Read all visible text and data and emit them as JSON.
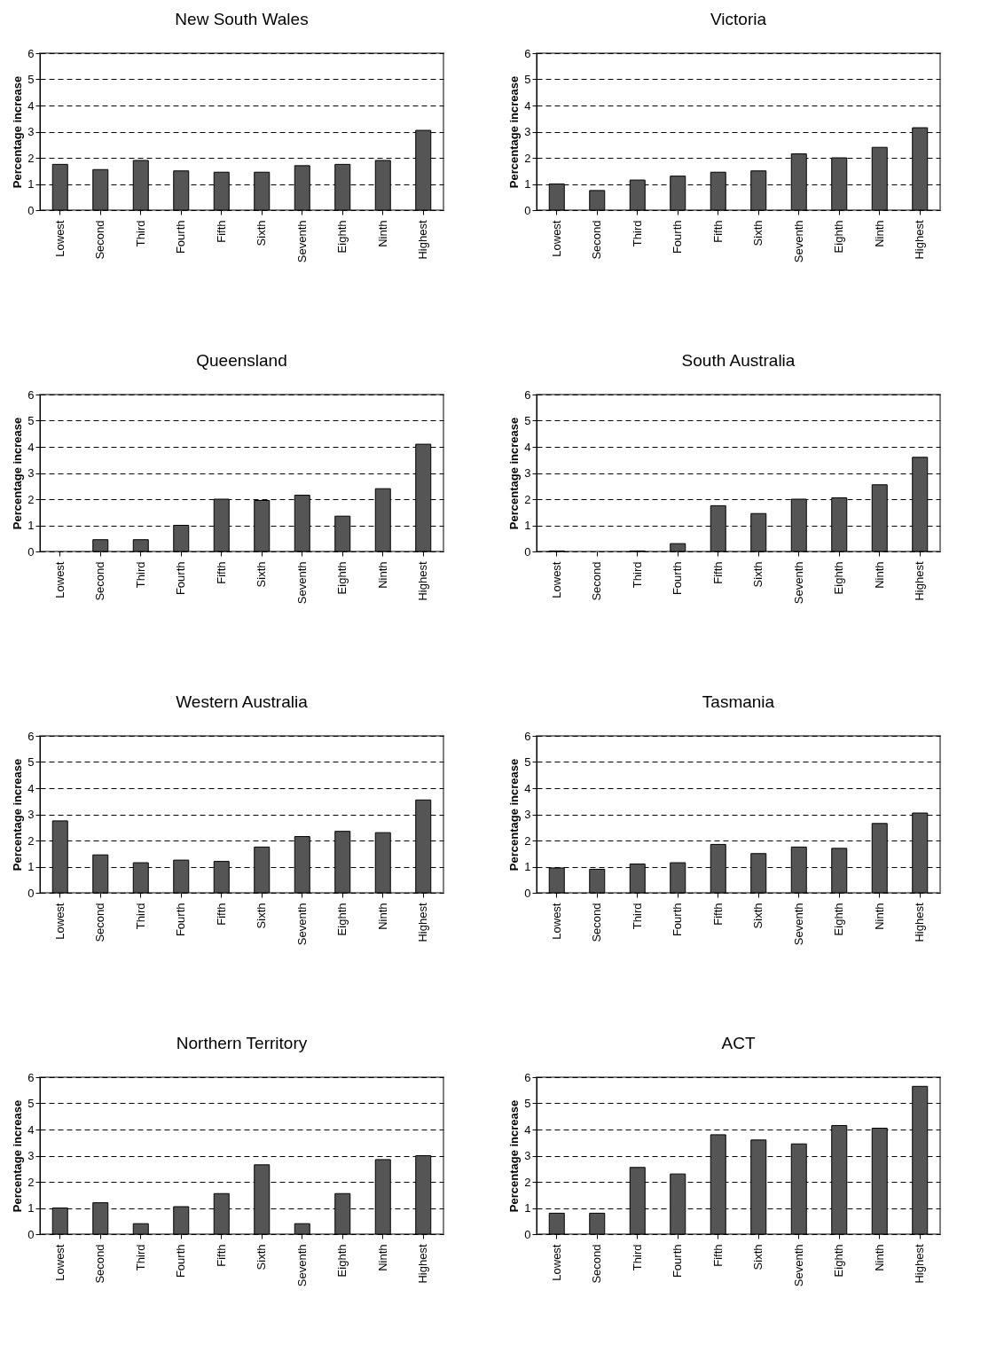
{
  "chart_data": [
    {
      "type": "bar",
      "title": "New South Wales",
      "ylabel": "Percentage increase",
      "categories": [
        "Lowest",
        "Second",
        "Third",
        "Fourth",
        "Fifth",
        "Sixth",
        "Seventh",
        "Eighth",
        "Ninth",
        "Highest"
      ],
      "values": [
        1.75,
        1.55,
        1.9,
        1.5,
        1.45,
        1.45,
        1.7,
        1.75,
        1.9,
        3.05
      ],
      "color": "#555555",
      "ylim": [
        0,
        6
      ],
      "yticks": [
        0,
        1,
        2,
        3,
        4,
        5,
        6
      ],
      "grid": "y"
    },
    {
      "type": "bar",
      "title": "Victoria",
      "ylabel": "Percentage increase",
      "categories": [
        "Lowest",
        "Second",
        "Third",
        "Fourth",
        "Fifth",
        "Sixth",
        "Seventh",
        "Eighth",
        "Ninth",
        "Highest"
      ],
      "values": [
        1.0,
        0.75,
        1.15,
        1.3,
        1.45,
        1.5,
        2.15,
        2.0,
        2.4,
        3.15
      ],
      "color": "#555555",
      "ylim": [
        0,
        6
      ],
      "yticks": [
        0,
        1,
        2,
        3,
        4,
        5,
        6
      ],
      "grid": "y"
    },
    {
      "type": "bar",
      "title": "Queensland",
      "ylabel": "Percentage increase",
      "categories": [
        "Lowest",
        "Second",
        "Third",
        "Fourth",
        "Fifth",
        "Sixth",
        "Seventh",
        "Eighth",
        "Ninth",
        "Highest"
      ],
      "values": [
        0,
        0.45,
        0.45,
        1.0,
        2.0,
        1.95,
        2.15,
        1.35,
        2.4,
        4.1
      ],
      "color": "#555555",
      "ylim": [
        0,
        6
      ],
      "yticks": [
        0,
        1,
        2,
        3,
        4,
        5,
        6
      ],
      "grid": "y"
    },
    {
      "type": "bar",
      "title": "South Australia",
      "ylabel": "Percentage increase",
      "categories": [
        "Lowest",
        "Second",
        "Third",
        "Fourth",
        "Fifth",
        "Sixth",
        "Seventh",
        "Eighth",
        "Ninth",
        "Highest"
      ],
      "values": [
        0.02,
        0,
        0.02,
        0.3,
        1.75,
        1.45,
        2.0,
        2.05,
        2.55,
        3.6
      ],
      "color": "#555555",
      "ylim": [
        0,
        6
      ],
      "yticks": [
        0,
        1,
        2,
        3,
        4,
        5,
        6
      ],
      "grid": "y"
    },
    {
      "type": "bar",
      "title": "Western Australia",
      "ylabel": "Percentage increase",
      "categories": [
        "Lowest",
        "Second",
        "Third",
        "Fourth",
        "Fifth",
        "Sixth",
        "Seventh",
        "Eighth",
        "Ninth",
        "Highest"
      ],
      "values": [
        2.75,
        1.45,
        1.15,
        1.25,
        1.2,
        1.75,
        2.15,
        2.35,
        2.3,
        3.55
      ],
      "color": "#555555",
      "ylim": [
        0,
        6
      ],
      "yticks": [
        0,
        1,
        2,
        3,
        4,
        5,
        6
      ],
      "grid": "y"
    },
    {
      "type": "bar",
      "title": "Tasmania",
      "ylabel": "Percentage increase",
      "categories": [
        "Lowest",
        "Second",
        "Third",
        "Fourth",
        "Fifth",
        "Sixth",
        "Seventh",
        "Eighth",
        "Ninth",
        "Highest"
      ],
      "values": [
        0.95,
        0.9,
        1.1,
        1.15,
        1.85,
        1.5,
        1.75,
        1.7,
        2.65,
        3.05
      ],
      "color": "#555555",
      "ylim": [
        0,
        6
      ],
      "yticks": [
        0,
        1,
        2,
        3,
        4,
        5,
        6
      ],
      "grid": "y"
    },
    {
      "type": "bar",
      "title": "Northern Territory",
      "ylabel": "Percentage increase",
      "categories": [
        "Lowest",
        "Second",
        "Third",
        "Fourth",
        "Fifth",
        "Sixth",
        "Seventh",
        "Eighth",
        "Ninth",
        "Highest"
      ],
      "values": [
        1.0,
        1.2,
        0.4,
        1.05,
        1.55,
        2.65,
        0.4,
        1.55,
        2.85,
        3.0
      ],
      "color": "#555555",
      "ylim": [
        0,
        6
      ],
      "yticks": [
        0,
        1,
        2,
        3,
        4,
        5,
        6
      ],
      "grid": "y"
    },
    {
      "type": "bar",
      "title": "ACT",
      "ylabel": "Percentage increase",
      "categories": [
        "Lowest",
        "Second",
        "Third",
        "Fourth",
        "Fifth",
        "Sixth",
        "Seventh",
        "Eighth",
        "Ninth",
        "Highest"
      ],
      "values": [
        0.8,
        0.8,
        2.55,
        2.3,
        3.8,
        3.6,
        3.45,
        4.15,
        4.05,
        5.65
      ],
      "color": "#555555",
      "ylim": [
        0,
        6
      ],
      "yticks": [
        0,
        1,
        2,
        3,
        4,
        5,
        6
      ],
      "grid": "y"
    }
  ]
}
